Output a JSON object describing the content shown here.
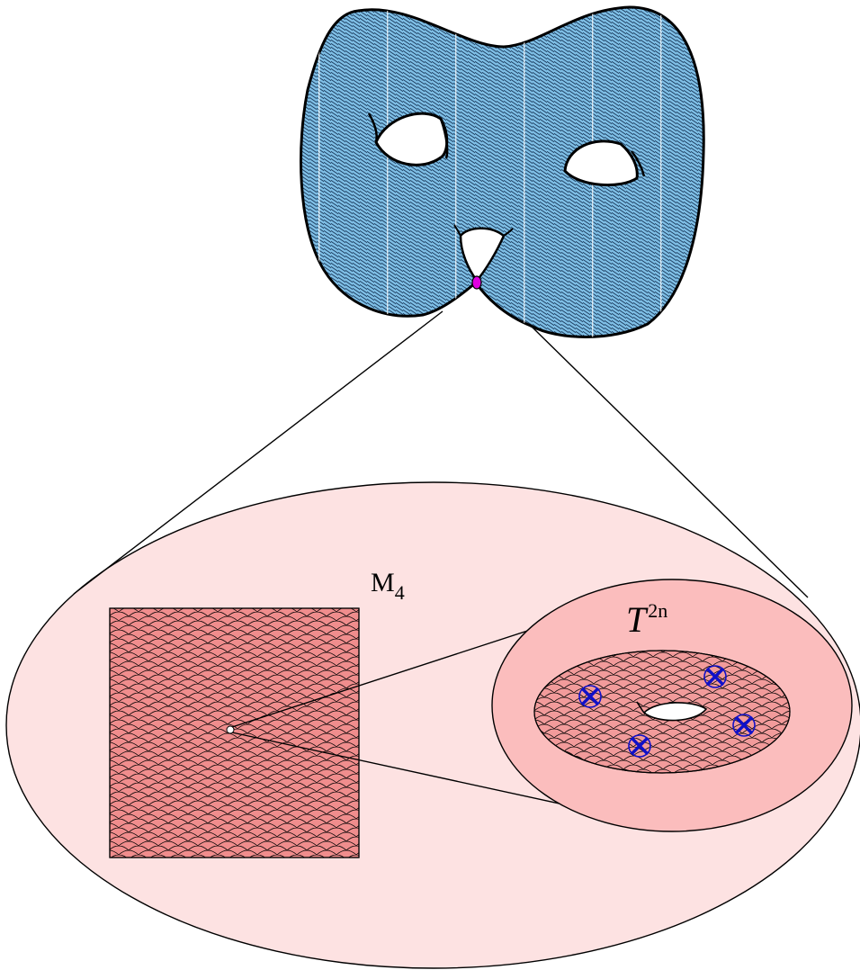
{
  "diagram": {
    "labels": {
      "manifold": "M",
      "manifold_sub": "4",
      "torus": "T",
      "torus_sup": "2n"
    },
    "colors": {
      "surface_fill": "#7fbfe6",
      "surface_hatch": "#1a3a5c",
      "surface_stripe": "#ffffff",
      "pinch_point": "#e000e0",
      "ellipse_fill": "#fde2e2",
      "square_fill": "#f08d8d",
      "disc_fill": "#fbbdbd",
      "inner_fill": "#f29b9b",
      "marker": "#1010c8",
      "outline": "#000000"
    },
    "markers": [
      {
        "name": "singularity-marker-1",
        "symbol": "⊗"
      },
      {
        "name": "singularity-marker-2",
        "symbol": "⊗"
      },
      {
        "name": "singularity-marker-3",
        "symbol": "⊗"
      },
      {
        "name": "singularity-marker-4",
        "symbol": "⊗"
      }
    ]
  }
}
